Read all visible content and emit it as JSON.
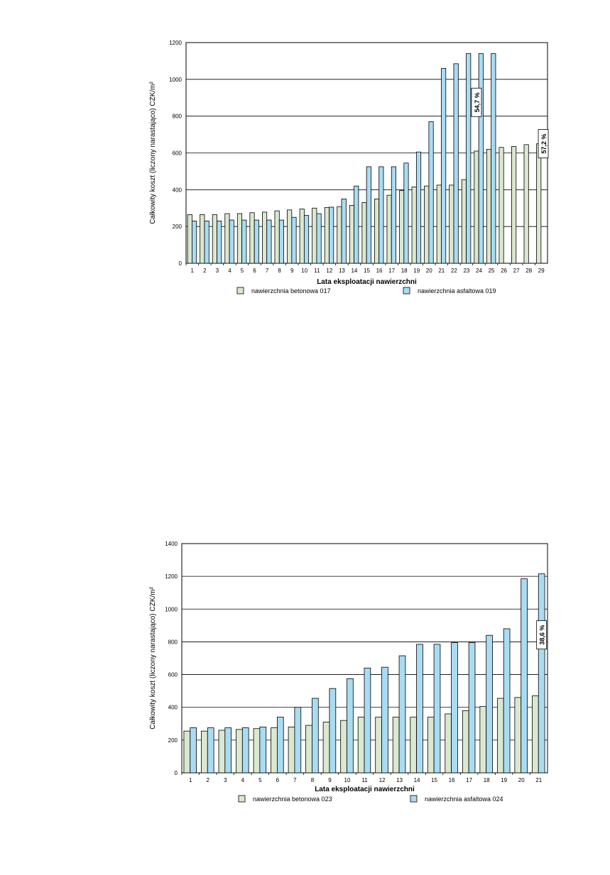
{
  "colors": {
    "concrete": "#d9e8cf",
    "asphalt": "#a9dcf3",
    "border": "#000000",
    "grid": "#000000"
  },
  "chart_data": [
    {
      "type": "bar",
      "ylabel": "Całkowity koszt (liczony narastająco) CZK/m²",
      "xlabel": "Lata eksploatacji nawierzchni",
      "ylim": [
        0,
        1200
      ],
      "yticks": [
        0,
        200,
        400,
        600,
        800,
        1000,
        1200
      ],
      "grid": true,
      "legend_position": "bottom",
      "categories": [
        "1",
        "2",
        "3",
        "4",
        "5",
        "6",
        "7",
        "8",
        "9",
        "10",
        "11",
        "12",
        "13",
        "14",
        "15",
        "16",
        "17",
        "18",
        "19",
        "20",
        "21",
        "22",
        "23",
        "24",
        "25",
        "26",
        "27",
        "28",
        "29"
      ],
      "series": [
        {
          "name": "nawierzchnia betonowa 017",
          "color_key": "concrete",
          "values": [
            265,
            265,
            265,
            270,
            270,
            275,
            278,
            285,
            290,
            295,
            300,
            303,
            308,
            315,
            330,
            350,
            370,
            395,
            415,
            420,
            425,
            425,
            455,
            610,
            620,
            630,
            635,
            645,
            650
          ]
        },
        {
          "name": "nawierzchnia asfaltowa 019",
          "color_key": "asphalt",
          "values": [
            230,
            230,
            230,
            235,
            235,
            235,
            235,
            235,
            250,
            260,
            270,
            305,
            350,
            420,
            525,
            525,
            525,
            545,
            605,
            770,
            1060,
            1085,
            1140,
            1140,
            1140,
            null,
            null,
            null,
            null
          ]
        }
      ],
      "annotations": [
        "54,7 %",
        "57,2 %"
      ]
    },
    {
      "type": "bar",
      "ylabel": "Całkowity koszt (liczony narastająco) CZK/m²",
      "xlabel": "Lata eksploatacji nawierzchni",
      "ylim": [
        0,
        1400
      ],
      "yticks": [
        0,
        200,
        400,
        600,
        800,
        1000,
        1200,
        1400
      ],
      "grid": true,
      "legend_position": "bottom",
      "categories": [
        "1",
        "2",
        "3",
        "4",
        "5",
        "6",
        "7",
        "8",
        "9",
        "10",
        "11",
        "12",
        "13",
        "14",
        "15",
        "16",
        "17",
        "18",
        "19",
        "20",
        "21"
      ],
      "series": [
        {
          "name": "nawierzchnia betonowa 023",
          "color_key": "concrete",
          "values": [
            255,
            255,
            260,
            265,
            270,
            275,
            280,
            290,
            310,
            320,
            340,
            340,
            340,
            340,
            340,
            360,
            380,
            405,
            455,
            460,
            470
          ]
        },
        {
          "name": "nawierzchnia asfaltowa 024",
          "color_key": "asphalt",
          "values": [
            275,
            275,
            275,
            275,
            280,
            340,
            400,
            455,
            515,
            575,
            640,
            645,
            715,
            785,
            785,
            795,
            795,
            840,
            880,
            1185,
            1215
          ]
        }
      ],
      "annotations": [
        "38,6 %"
      ]
    }
  ]
}
